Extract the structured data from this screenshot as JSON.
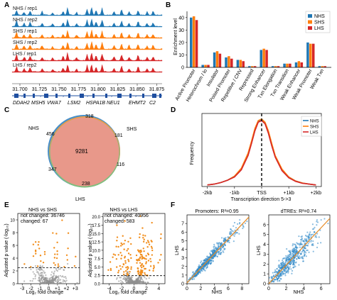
{
  "colors": {
    "nhs": "#1f77b4",
    "shs": "#ff7f0e",
    "lhs": "#d62728",
    "gene": "#1f4fa0",
    "volcano_grey": "#8f8f8f",
    "volcano_orange": "#f28e1c",
    "scatter_point": "#2c86c6",
    "fit": "#e58a25"
  },
  "panels": {
    "a": "A",
    "b": "B",
    "c": "C",
    "d": "D",
    "e": "E",
    "f": "F"
  },
  "tracks": {
    "labels": [
      "NHS / rep1",
      "NHS / rep2",
      "SHS / rep1",
      "SHS / rep2",
      "LHS / rep1",
      "LHS / rep2"
    ],
    "series": [
      "nhs",
      "nhs",
      "shs",
      "shs",
      "lhs",
      "lhs"
    ],
    "coords": [
      "31.700",
      "31.725",
      "31.750",
      "31.775",
      "31.800",
      "31.825",
      "31.850",
      "31.875"
    ],
    "genes": [
      "DDAH2",
      "MSH5",
      "VWA7",
      "LSM2",
      "HSPA1B",
      "NEU1",
      "EHMT2",
      "C2"
    ]
  },
  "chart_data": [
    {
      "panel": "B",
      "type": "bar",
      "ylabel": "Enrichment level",
      "categories": [
        "Active Promoter",
        "Heterochrom / lo",
        "Insulator",
        "Poised Promoter",
        "Repetitive / CNV",
        "Repressed",
        "Strong Enhancer",
        "Txn Elongation",
        "Txn Transition",
        "Weak Enhancer",
        "Weak Promoter",
        "Weak Txn"
      ],
      "series": [
        {
          "name": "NHS",
          "values": [
            40,
            2,
            12,
            8,
            6,
            1,
            14,
            1,
            3,
            4,
            20,
            1
          ]
        },
        {
          "name": "SHS",
          "values": [
            41,
            2,
            13,
            9,
            6,
            1,
            15,
            1,
            3,
            5,
            19,
            1
          ]
        },
        {
          "name": "LHS",
          "values": [
            38,
            2,
            11,
            7,
            5,
            1,
            14,
            1,
            3,
            4,
            19,
            1
          ]
        }
      ],
      "ylim": [
        0,
        45
      ],
      "yticks": [
        "0",
        "10",
        "20",
        "30",
        "40"
      ],
      "legend": "top-right"
    },
    {
      "panel": "C",
      "type": "venn",
      "sets": [
        "NHS",
        "SHS",
        "LHS"
      ],
      "regions": {
        "all": "9281",
        "nhs_only": "456",
        "shs_only": "181",
        "lhs_only": "238",
        "nhs_shs": "318",
        "nhs_lhs": "347",
        "shs_lhs": "116"
      }
    },
    {
      "panel": "D",
      "type": "line",
      "xlabel": "Transcription direction 5->3",
      "ylabel": "Frequency",
      "xticks": [
        "-2kb",
        "-1kb",
        "TSS",
        "+1kb",
        "+2kb"
      ],
      "x": [
        -2000,
        -1750,
        -1500,
        -1250,
        -1000,
        -750,
        -500,
        -375,
        -250,
        -125,
        0,
        125,
        250,
        375,
        500,
        750,
        1000,
        1250,
        1500,
        1750,
        2000
      ],
      "series": [
        {
          "name": "NHS",
          "values": [
            0.02,
            0.03,
            0.05,
            0.08,
            0.13,
            0.22,
            0.4,
            0.55,
            0.71,
            0.82,
            0.84,
            0.8,
            0.68,
            0.52,
            0.38,
            0.21,
            0.12,
            0.07,
            0.045,
            0.03,
            0.02
          ]
        },
        {
          "name": "SHS",
          "values": [
            0.02,
            0.03,
            0.05,
            0.08,
            0.13,
            0.23,
            0.42,
            0.57,
            0.73,
            0.83,
            0.85,
            0.81,
            0.7,
            0.54,
            0.39,
            0.22,
            0.12,
            0.07,
            0.045,
            0.03,
            0.02
          ]
        },
        {
          "name": "LHS",
          "values": [
            0.02,
            0.03,
            0.05,
            0.08,
            0.12,
            0.21,
            0.39,
            0.54,
            0.7,
            0.81,
            0.83,
            0.79,
            0.67,
            0.51,
            0.37,
            0.2,
            0.11,
            0.065,
            0.04,
            0.03,
            0.02
          ]
        }
      ],
      "legend": "top-right"
    },
    {
      "panel": "E1",
      "type": "scatter",
      "title": "NHS vs SHS",
      "xlabel": "Log₂ fold change",
      "ylabel": "Adjusted p value (-log₁₀)",
      "annotations": [
        "not changed: 36746",
        "changed: 67"
      ],
      "xticks": [
        "-3",
        "-2",
        "-1",
        "0",
        "+1",
        "+2",
        "+3"
      ],
      "yticks": [
        "0",
        "2",
        "4",
        "6",
        "8",
        "10"
      ],
      "xlim": [
        -3.5,
        3.5
      ],
      "ylim": [
        0,
        11
      ],
      "threshold": 2.5
    },
    {
      "panel": "E2",
      "type": "scatter",
      "title": "NHS vs LHS",
      "xlabel": "Log₂ fold change",
      "ylabel": "Adjusted p value (-log₁₀)",
      "annotations": [
        "not changed: 40956",
        "changed: 583"
      ],
      "xticks": [
        "-4",
        "-2",
        "0",
        "2",
        "4"
      ],
      "yticks": [
        "0.0",
        "2.5",
        "5.0",
        "7.5",
        "10.0",
        "12.5",
        "15.0",
        "17.5",
        "20.0"
      ],
      "xlim": [
        -5,
        5
      ],
      "ylim": [
        0,
        21
      ],
      "threshold": 2.4
    },
    {
      "panel": "F1",
      "type": "scatter",
      "title": "Promoters: R²=0.95",
      "xlabel": "NHS",
      "ylabel": "LHS",
      "xticks": [
        "0",
        "2",
        "4",
        "6",
        "8"
      ],
      "yticks": [
        "0",
        "1",
        "2",
        "3",
        "4",
        "5",
        "6",
        "7"
      ],
      "xlim": [
        0,
        9
      ],
      "ylim": [
        0,
        8
      ],
      "fit": {
        "slope": 0.85,
        "intercept": 0.1
      }
    },
    {
      "panel": "F2",
      "type": "scatter",
      "title": "dTREs: R²=0.74",
      "xlabel": "NHS",
      "ylabel": "LHS",
      "xticks": [
        "0",
        "2",
        "4",
        "6"
      ],
      "yticks": [
        "0",
        "1",
        "2",
        "3",
        "4",
        "5",
        "6"
      ],
      "xlim": [
        0,
        7
      ],
      "ylim": [
        0,
        7
      ],
      "fit": {
        "slope": 0.95,
        "intercept": 0
      }
    }
  ]
}
